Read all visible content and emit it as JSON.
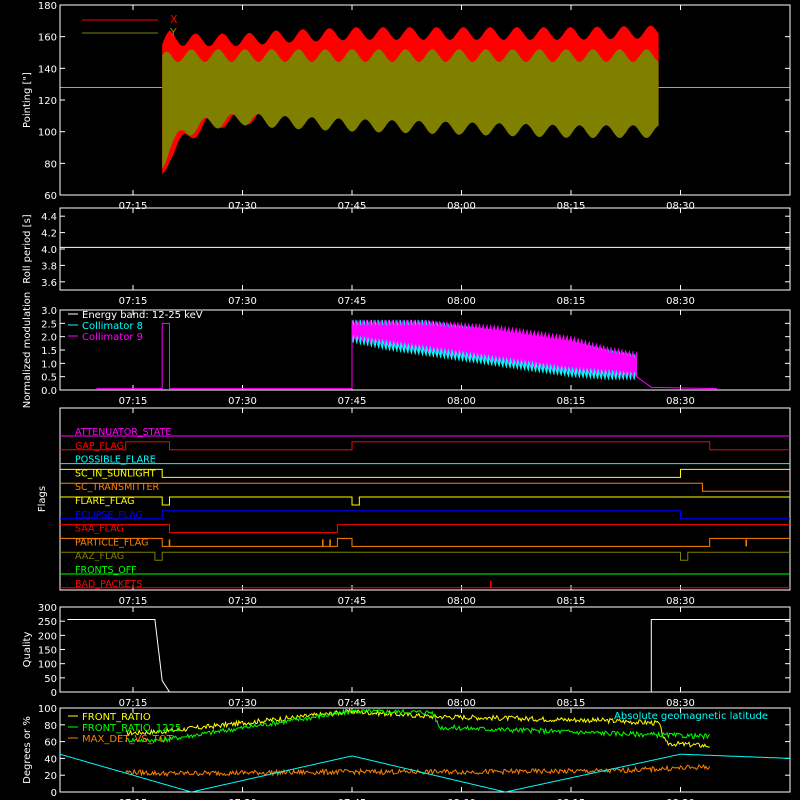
{
  "x_ticks": [
    "07:15",
    "07:30",
    "07:45",
    "08:00",
    "08:15",
    "08:30"
  ],
  "chart_data": [
    {
      "type": "line",
      "ylabel": "Pointing [\"]",
      "ylim": [
        60,
        180
      ],
      "yticks": [
        60,
        80,
        100,
        120,
        140,
        160,
        180
      ],
      "legend": [
        {
          "name": "X",
          "color": "#ff0000"
        },
        {
          "name": "Y",
          "color": "#808000"
        }
      ],
      "reference_line": 128,
      "series": [
        {
          "name": "X",
          "color": "#ff0000",
          "x": [
            "07:19",
            "07:20",
            "07:22",
            "07:25",
            "07:30",
            "07:35",
            "07:45",
            "08:00",
            "08:15",
            "08:27"
          ],
          "upper": [
            155,
            160,
            158,
            158,
            158,
            160,
            162,
            162,
            162,
            163
          ],
          "lower": [
            73,
            85,
            95,
            105,
            108,
            112,
            114,
            114,
            115,
            115
          ]
        },
        {
          "name": "Y",
          "color": "#808000",
          "x": [
            "07:19",
            "07:20",
            "07:22",
            "07:25",
            "07:30",
            "07:35",
            "07:45",
            "08:00",
            "08:15",
            "08:27"
          ],
          "upper": [
            145,
            148,
            148,
            148,
            148,
            148,
            148,
            148,
            148,
            148
          ],
          "lower": [
            80,
            90,
            100,
            105,
            108,
            106,
            104,
            102,
            100,
            100
          ]
        }
      ]
    },
    {
      "type": "line",
      "ylabel": "Roll period [s]",
      "ylim": [
        3.5,
        4.5
      ],
      "yticks": [
        3.6,
        3.8,
        4.0,
        4.2,
        4.4
      ],
      "series": [
        {
          "name": "",
          "color": "#ffffff",
          "x": [
            "07:05",
            "08:45"
          ],
          "y": [
            4.02,
            4.02
          ]
        }
      ]
    },
    {
      "type": "line",
      "ylabel": "Normalized modulation",
      "ylim": [
        0,
        3.0
      ],
      "yticks": [
        0.0,
        0.5,
        1.0,
        1.5,
        2.0,
        2.5,
        3.0
      ],
      "legend": [
        {
          "name": "Energy band: 12-25 keV",
          "color": "#ffffff"
        },
        {
          "name": "Collimator 8",
          "color": "#00ffff"
        },
        {
          "name": "Collimator 9",
          "color": "#ff00ff"
        }
      ],
      "series": [
        {
          "name": "Collimator 8",
          "color": "#00ffff",
          "x": [
            "07:45",
            "07:50",
            "07:55",
            "08:00",
            "08:05",
            "08:10",
            "08:15",
            "08:20",
            "08:24"
          ],
          "upper": [
            2.5,
            2.5,
            2.5,
            2.3,
            2.1,
            1.9,
            1.7,
            1.4,
            1.2
          ],
          "lower": [
            1.9,
            1.6,
            1.4,
            1.2,
            1.0,
            0.8,
            0.6,
            0.5,
            0.5
          ]
        },
        {
          "name": "Collimator 9",
          "color": "#ff00ff",
          "x": [
            "07:45",
            "07:50",
            "07:55",
            "08:00",
            "08:05",
            "08:10",
            "08:15",
            "08:20",
            "08:24"
          ],
          "upper": [
            2.5,
            2.5,
            2.5,
            2.4,
            2.3,
            2.1,
            1.9,
            1.5,
            1.3
          ],
          "lower": [
            2.0,
            1.8,
            1.6,
            1.4,
            1.2,
            1.0,
            0.8,
            0.7,
            0.6
          ]
        }
      ]
    },
    {
      "type": "line",
      "ylabel": "Flags",
      "series": [
        {
          "name": "ATTENUATOR_STATE",
          "color": "#ff00ff",
          "segments": [
            [
              "07:05",
              "08:45",
              0
            ]
          ]
        },
        {
          "name": "GAP_FLAG",
          "color": "#ff0000",
          "segments": [
            [
              "07:05",
              "07:14",
              0
            ],
            [
              "07:14",
              "07:20",
              -1
            ],
            [
              "07:20",
              "07:45",
              0
            ],
            [
              "07:45",
              "08:34",
              -1
            ],
            [
              "08:34",
              "08:45",
              0
            ]
          ]
        },
        {
          "name": "POSSIBLE_FLARE",
          "color": "#00ffff",
          "segments": [
            [
              "07:05",
              "08:45",
              0
            ]
          ]
        },
        {
          "name": "SC_IN_SUNLIGHT",
          "color": "#ffff00",
          "segments": [
            [
              "07:05",
              "07:19",
              -1
            ],
            [
              "07:19",
              "08:30",
              0
            ],
            [
              "08:30",
              "08:45",
              -1
            ]
          ]
        },
        {
          "name": "SC_TRANSMITTER",
          "color": "#ff8000",
          "segments": [
            [
              "07:05",
              "08:33",
              -1
            ],
            [
              "08:33",
              "08:45",
              0
            ]
          ]
        },
        {
          "name": "FLARE_FLAG",
          "color": "#ffff00",
          "segments": [
            [
              "07:05",
              "07:19",
              -1
            ],
            [
              "07:19",
              "07:20",
              0
            ],
            [
              "07:20",
              "07:45",
              -1
            ],
            [
              "07:45",
              "07:46",
              0
            ],
            [
              "07:46",
              "08:45",
              -1
            ]
          ]
        },
        {
          "name": "ECLIPSE_FLAG",
          "color": "#0000ff",
          "segments": [
            [
              "07:05",
              "07:19",
              0
            ],
            [
              "07:19",
              "08:30",
              -1
            ],
            [
              "08:30",
              "08:45",
              0
            ]
          ]
        },
        {
          "name": "SAA_FLAG",
          "color": "#ff0000",
          "segments": [
            [
              "07:05",
              "07:20",
              -1
            ],
            [
              "07:20",
              "07:43",
              0
            ],
            [
              "07:43",
              "08:45",
              -1
            ]
          ]
        },
        {
          "name": "PARTICLE_FLAG",
          "color": "#ff8000",
          "segments": [
            [
              "07:05",
              "07:19",
              -1
            ],
            [
              "07:19",
              "07:43",
              0
            ],
            [
              "07:43",
              "07:45",
              -1
            ],
            [
              "07:45",
              "08:34",
              0
            ],
            [
              "08:34",
              "08:45",
              -1
            ]
          ]
        },
        {
          "name": "AAZ_FLAG",
          "color": "#808000",
          "segments": [
            [
              "07:05",
              "07:18",
              -1
            ],
            [
              "07:18",
              "07:19",
              0
            ],
            [
              "07:19",
              "08:30",
              -1
            ],
            [
              "08:30",
              "08:31",
              0
            ],
            [
              "08:31",
              "08:45",
              -1
            ]
          ]
        },
        {
          "name": "FRONTS_OFF",
          "color": "#00ff00",
          "segments": [
            [
              "07:05",
              "08:45",
              0
            ]
          ]
        },
        {
          "name": "BAD_PACKETS",
          "color": "#ff0000",
          "segments": [
            [
              "07:05",
              "08:45",
              0
            ]
          ]
        }
      ]
    },
    {
      "type": "line",
      "ylabel": "Quality",
      "ylim": [
        0,
        300
      ],
      "yticks": [
        0,
        50,
        100,
        150,
        200,
        250,
        300
      ],
      "series": [
        {
          "name": "",
          "color": "#ffffff",
          "x": [
            "07:06",
            "07:18",
            "07:19",
            "07:20",
            "08:26",
            "08:26",
            "08:45"
          ],
          "y": [
            256,
            256,
            40,
            0,
            0,
            256,
            256
          ]
        }
      ]
    },
    {
      "type": "line",
      "ylabel": "Degrees or %",
      "ylim": [
        0,
        100
      ],
      "yticks": [
        0,
        20,
        40,
        60,
        80,
        100
      ],
      "legend": [
        {
          "name": "FRONT_RATIO",
          "color": "#ffff00"
        },
        {
          "name": "FRONT_RATIO_1225",
          "color": "#00ff00"
        },
        {
          "name": "MAX_DET_VS_TOT",
          "color": "#ff8000"
        }
      ],
      "annotation": {
        "text": "Absolute geomagnetic latitude",
        "color": "#00ffff"
      },
      "series": [
        {
          "name": "FRONT_RATIO",
          "color": "#ffff00",
          "x": [
            "07:14",
            "07:19",
            "07:45",
            "07:56",
            "08:20",
            "08:27",
            "08:28",
            "08:34"
          ],
          "y": [
            70,
            72,
            96,
            90,
            85,
            82,
            58,
            55
          ]
        },
        {
          "name": "FRONT_RATIO_1225",
          "color": "#00ff00",
          "x": [
            "07:14",
            "07:19",
            "07:45",
            "07:56",
            "07:57",
            "08:20",
            "08:34"
          ],
          "y": [
            62,
            62,
            96,
            95,
            77,
            70,
            66
          ]
        },
        {
          "name": "MAX_DET_VS_TOT",
          "color": "#ff8000",
          "x": [
            "07:14",
            "07:19",
            "07:45",
            "08:00",
            "08:20",
            "08:34"
          ],
          "y": [
            24,
            22,
            24,
            24,
            25,
            30
          ]
        },
        {
          "name": "Absolute geomagnetic latitude",
          "color": "#00ffff",
          "x": [
            "07:05",
            "07:23",
            "07:45",
            "08:06",
            "08:30",
            "08:45"
          ],
          "y": [
            45,
            0,
            43,
            0,
            45,
            40
          ]
        }
      ]
    }
  ]
}
